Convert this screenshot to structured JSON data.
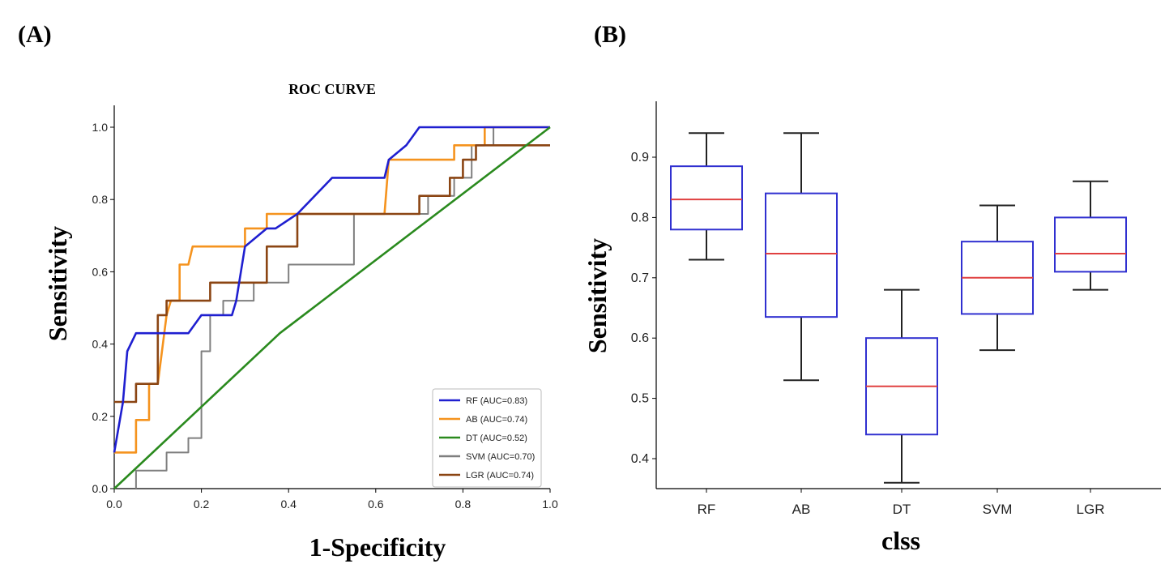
{
  "panels": {
    "a_label": "(A)",
    "b_label": "(B)"
  },
  "chart_data": [
    {
      "type": "line",
      "title": "ROC CURVE",
      "xlabel": "1-Specificity",
      "ylabel": "Sensitivity",
      "xlim": [
        0,
        1
      ],
      "ylim": [
        0,
        1
      ],
      "xticks": [
        "0.0",
        "0.2",
        "0.4",
        "0.6",
        "0.8",
        "1.0"
      ],
      "yticks": [
        "0.0",
        "0.2",
        "0.4",
        "0.6",
        "0.8",
        "1.0"
      ],
      "grid": false,
      "legend_position": "lower-right",
      "series": [
        {
          "name": "RF (AUC=0.83)",
          "color": "#1f1fd0",
          "points": [
            [
              0,
              0.1
            ],
            [
              0.02,
              0.24
            ],
            [
              0.03,
              0.38
            ],
            [
              0.05,
              0.43
            ],
            [
              0.15,
              0.43
            ],
            [
              0.17,
              0.43
            ],
            [
              0.2,
              0.48
            ],
            [
              0.27,
              0.48
            ],
            [
              0.28,
              0.52
            ],
            [
              0.3,
              0.67
            ],
            [
              0.35,
              0.72
            ],
            [
              0.37,
              0.72
            ],
            [
              0.42,
              0.76
            ],
            [
              0.5,
              0.86
            ],
            [
              0.62,
              0.86
            ],
            [
              0.63,
              0.91
            ],
            [
              0.67,
              0.95
            ],
            [
              0.7,
              1.0
            ],
            [
              0.85,
              1.0
            ],
            [
              1.0,
              1.0
            ]
          ]
        },
        {
          "name": "AB (AUC=0.74)",
          "color": "#f5931e",
          "points": [
            [
              0,
              0.1
            ],
            [
              0.05,
              0.1
            ],
            [
              0.05,
              0.19
            ],
            [
              0.08,
              0.19
            ],
            [
              0.08,
              0.29
            ],
            [
              0.1,
              0.29
            ],
            [
              0.12,
              0.48
            ],
            [
              0.13,
              0.52
            ],
            [
              0.15,
              0.52
            ],
            [
              0.15,
              0.62
            ],
            [
              0.17,
              0.62
            ],
            [
              0.18,
              0.67
            ],
            [
              0.3,
              0.67
            ],
            [
              0.3,
              0.72
            ],
            [
              0.35,
              0.72
            ],
            [
              0.35,
              0.76
            ],
            [
              0.62,
              0.76
            ],
            [
              0.63,
              0.91
            ],
            [
              0.78,
              0.91
            ],
            [
              0.78,
              0.95
            ],
            [
              0.85,
              0.95
            ],
            [
              0.85,
              1.0
            ],
            [
              1.0,
              1.0
            ]
          ]
        },
        {
          "name": "DT (AUC=0.52)",
          "color": "#2a8a1e",
          "points": [
            [
              0,
              0
            ],
            [
              0.38,
              0.43
            ],
            [
              1.0,
              1.0
            ]
          ]
        },
        {
          "name": "SVM (AUC=0.70)",
          "color": "#7f7f7f",
          "points": [
            [
              0.05,
              0
            ],
            [
              0.05,
              0.05
            ],
            [
              0.12,
              0.05
            ],
            [
              0.12,
              0.1
            ],
            [
              0.17,
              0.1
            ],
            [
              0.17,
              0.14
            ],
            [
              0.2,
              0.14
            ],
            [
              0.2,
              0.38
            ],
            [
              0.22,
              0.38
            ],
            [
              0.22,
              0.48
            ],
            [
              0.25,
              0.48
            ],
            [
              0.25,
              0.52
            ],
            [
              0.32,
              0.52
            ],
            [
              0.32,
              0.57
            ],
            [
              0.4,
              0.57
            ],
            [
              0.4,
              0.62
            ],
            [
              0.55,
              0.62
            ],
            [
              0.55,
              0.76
            ],
            [
              0.72,
              0.76
            ],
            [
              0.72,
              0.81
            ],
            [
              0.78,
              0.81
            ],
            [
              0.78,
              0.86
            ],
            [
              0.82,
              0.86
            ],
            [
              0.82,
              0.95
            ],
            [
              0.87,
              0.95
            ],
            [
              0.87,
              1.0
            ],
            [
              1.0,
              1.0
            ]
          ]
        },
        {
          "name": "LGR (AUC=0.74)",
          "color": "#8b4513",
          "points": [
            [
              0,
              0.24
            ],
            [
              0.05,
              0.24
            ],
            [
              0.05,
              0.29
            ],
            [
              0.1,
              0.29
            ],
            [
              0.1,
              0.48
            ],
            [
              0.12,
              0.48
            ],
            [
              0.12,
              0.52
            ],
            [
              0.17,
              0.52
            ],
            [
              0.17,
              0.52
            ],
            [
              0.22,
              0.52
            ],
            [
              0.22,
              0.57
            ],
            [
              0.35,
              0.57
            ],
            [
              0.35,
              0.67
            ],
            [
              0.42,
              0.67
            ],
            [
              0.42,
              0.76
            ],
            [
              0.7,
              0.76
            ],
            [
              0.7,
              0.81
            ],
            [
              0.77,
              0.81
            ],
            [
              0.77,
              0.86
            ],
            [
              0.8,
              0.86
            ],
            [
              0.8,
              0.91
            ],
            [
              0.83,
              0.91
            ],
            [
              0.83,
              0.95
            ],
            [
              1.0,
              0.95
            ]
          ]
        }
      ]
    },
    {
      "type": "box",
      "title": "",
      "xlabel": "clss",
      "ylabel": "Sensitivity",
      "ylim": [
        0.35,
        0.97
      ],
      "yticks": [
        "0.4",
        "0.5",
        "0.6",
        "0.7",
        "0.8",
        "0.9"
      ],
      "categories": [
        "RF",
        "AB",
        "DT",
        "SVM",
        "LGR"
      ],
      "box_color": "#3030d0",
      "median_color": "#e04040",
      "whisker_color": "#222222",
      "boxes": [
        {
          "min": 0.73,
          "q1": 0.78,
          "median": 0.83,
          "q3": 0.885,
          "max": 0.94
        },
        {
          "min": 0.53,
          "q1": 0.635,
          "median": 0.74,
          "q3": 0.84,
          "max": 0.94
        },
        {
          "min": 0.36,
          "q1": 0.44,
          "median": 0.52,
          "q3": 0.6,
          "max": 0.68
        },
        {
          "min": 0.58,
          "q1": 0.64,
          "median": 0.7,
          "q3": 0.76,
          "max": 0.82
        },
        {
          "min": 0.68,
          "q1": 0.71,
          "median": 0.74,
          "q3": 0.8,
          "max": 0.86
        }
      ]
    }
  ]
}
